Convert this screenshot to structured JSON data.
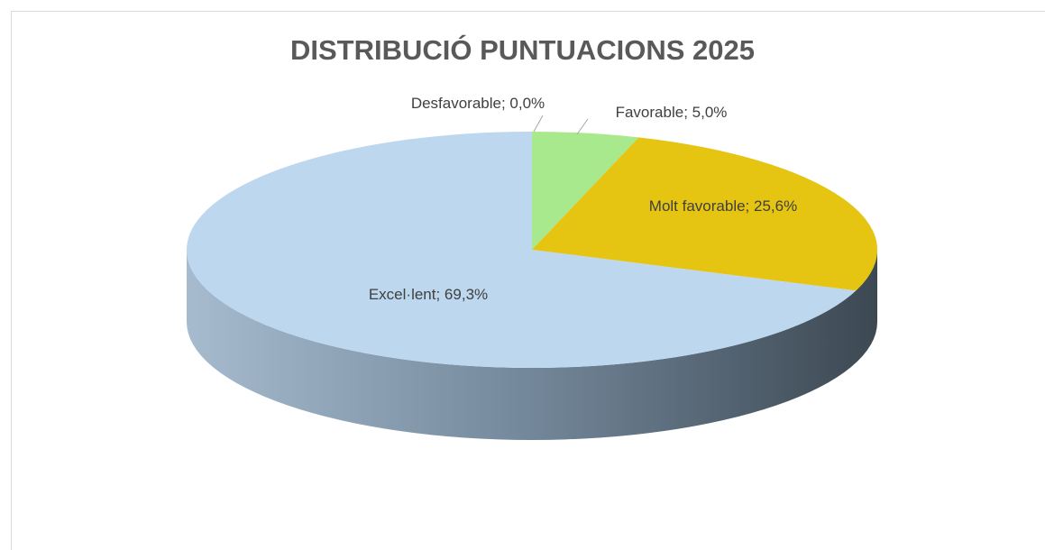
{
  "chart_data": {
    "type": "pie",
    "title": "DISTRIBUCIÓ PUNTUACIONS 2025",
    "values": [
      0.0,
      5.0,
      25.6,
      69.3
    ],
    "value_labels": [
      "Desfavorable; 0,0%",
      "Favorable; 5,0%",
      "Molt favorable; 25,6%",
      "Excel·lent; 69,3%"
    ],
    "colors": [
      "#ed7d31",
      "#a9e98e",
      "#e5c412",
      "#bdd7ee"
    ]
  }
}
